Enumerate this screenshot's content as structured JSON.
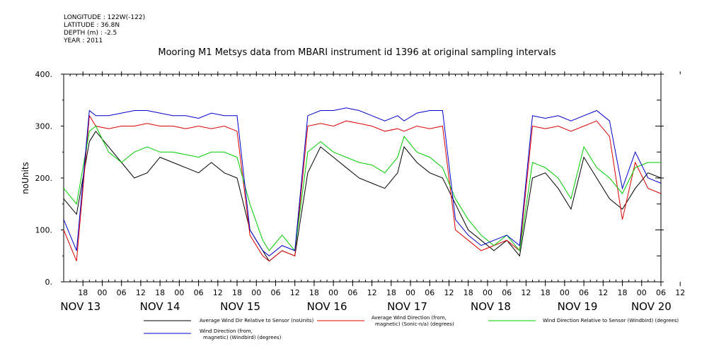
{
  "meta": {
    "longitude": "LONGITUDE : 122W(-122)",
    "latitude": "LATITUDE : 36.8N",
    "depth": "DEPTH (m) : -2.5",
    "year": "YEAR : 2011"
  },
  "chart_data": {
    "type": "line",
    "title": "Mooring M1 Metsys data from MBARI instrument id 1396 at original sampling intervals",
    "ylabel": "noUnits",
    "xlabel": "",
    "ylim": [
      0,
      400
    ],
    "yticks": [
      "0.",
      "100.",
      "200.",
      "300.",
      "400."
    ],
    "hour_ticks": [
      "18",
      "00",
      "06",
      "12",
      "18",
      "00",
      "06",
      "12",
      "18",
      "00",
      "06",
      "12",
      "18",
      "00",
      "06",
      "12",
      "18",
      "00",
      "06",
      "12",
      "18",
      "00",
      "06",
      "12",
      "18",
      "00",
      "06",
      "12",
      "18",
      "00",
      "06",
      "12"
    ],
    "date_labels": [
      "NOV 13",
      "NOV 14",
      "NOV 15",
      "NOV 16",
      "NOV 17",
      "NOV 18",
      "NOV 19",
      "NOV 20"
    ],
    "colors": {
      "black": "#000000",
      "red": "#dd0000",
      "green": "#00cc00",
      "blue": "#0000cc"
    },
    "series": [
      {
        "name": "Average Wind Dir Relative to Sensor (noUnits)",
        "color": "#000000",
        "x": [
          0,
          4,
          8,
          10,
          14,
          18,
          22,
          26,
          30,
          34,
          38,
          42,
          46,
          50,
          54,
          58,
          62,
          64,
          68,
          72,
          76,
          80,
          84,
          88,
          92,
          96,
          100,
          104,
          106,
          110,
          114,
          118,
          122,
          126,
          130,
          134,
          138,
          142,
          146,
          150,
          154,
          158,
          162,
          166,
          170,
          174,
          178,
          182,
          186
        ],
        "y": [
          160,
          130,
          270,
          290,
          260,
          230,
          200,
          210,
          240,
          230,
          220,
          210,
          230,
          210,
          200,
          100,
          60,
          40,
          60,
          50,
          210,
          260,
          240,
          220,
          200,
          190,
          180,
          210,
          260,
          230,
          210,
          200,
          150,
          100,
          80,
          60,
          80,
          50,
          200,
          210,
          180,
          140,
          240,
          200,
          160,
          140,
          180,
          210,
          200
        ]
      },
      {
        "name": "Average Wind Direction (from, magnetic) (Sonic-n/a) (degrees)",
        "color": "#dd0000",
        "x": [
          0,
          4,
          8,
          10,
          14,
          18,
          22,
          26,
          30,
          34,
          38,
          42,
          46,
          50,
          54,
          58,
          62,
          64,
          68,
          72,
          76,
          80,
          84,
          88,
          92,
          96,
          100,
          104,
          106,
          110,
          114,
          118,
          122,
          126,
          130,
          134,
          138,
          142,
          146,
          150,
          154,
          158,
          162,
          166,
          170,
          174,
          178,
          182,
          186
        ],
        "y": [
          100,
          40,
          320,
          300,
          295,
          300,
          300,
          305,
          300,
          300,
          295,
          300,
          295,
          300,
          290,
          90,
          50,
          40,
          60,
          50,
          300,
          305,
          300,
          310,
          305,
          300,
          290,
          295,
          290,
          300,
          295,
          300,
          100,
          80,
          60,
          70,
          80,
          60,
          300,
          295,
          300,
          290,
          300,
          310,
          280,
          120,
          230,
          180,
          170
        ]
      },
      {
        "name": "Wind Direction Relative to Sensor (Windbird) (degrees)",
        "color": "#00cc00",
        "x": [
          0,
          4,
          8,
          10,
          14,
          18,
          22,
          26,
          30,
          34,
          38,
          42,
          46,
          50,
          54,
          58,
          62,
          64,
          68,
          72,
          76,
          80,
          84,
          88,
          92,
          96,
          100,
          104,
          106,
          110,
          114,
          118,
          122,
          126,
          130,
          134,
          138,
          142,
          146,
          150,
          154,
          158,
          162,
          166,
          170,
          174,
          178,
          182,
          186
        ],
        "y": [
          180,
          150,
          290,
          300,
          250,
          230,
          250,
          260,
          250,
          250,
          245,
          240,
          250,
          250,
          240,
          150,
          80,
          60,
          90,
          60,
          250,
          270,
          250,
          240,
          230,
          225,
          210,
          240,
          280,
          250,
          240,
          220,
          160,
          120,
          90,
          70,
          90,
          60,
          230,
          220,
          200,
          160,
          260,
          220,
          200,
          170,
          220,
          230,
          230
        ]
      },
      {
        "name": "Wind Direction (from, magnetic) (Windbird) (degrees)",
        "color": "#0000cc",
        "x": [
          0,
          4,
          8,
          10,
          14,
          18,
          22,
          26,
          30,
          34,
          38,
          42,
          46,
          50,
          54,
          58,
          62,
          64,
          68,
          72,
          76,
          80,
          84,
          88,
          92,
          96,
          100,
          104,
          106,
          110,
          114,
          118,
          122,
          126,
          130,
          134,
          138,
          142,
          146,
          150,
          154,
          158,
          162,
          166,
          170,
          174,
          178,
          182,
          186
        ],
        "y": [
          120,
          60,
          330,
          320,
          320,
          325,
          330,
          330,
          325,
          320,
          320,
          315,
          325,
          320,
          320,
          100,
          60,
          50,
          70,
          60,
          320,
          330,
          330,
          335,
          330,
          320,
          310,
          320,
          310,
          325,
          330,
          330,
          120,
          90,
          70,
          80,
          90,
          70,
          320,
          315,
          320,
          310,
          320,
          330,
          310,
          180,
          250,
          200,
          190
        ]
      }
    ],
    "legend": [
      {
        "label": "Average Wind Dir Relative to Sensor (noUnits)",
        "color": "#000000"
      },
      {
        "label": "Average Wind Direction (from,",
        "label2": "magnetic) (Sonic-n/a) (degrees)",
        "color": "#dd0000"
      },
      {
        "label": "Wind Direction Relative to Sensor (Windbird) (degrees)",
        "color": "#00cc00"
      },
      {
        "label": "Wind Direction (from,",
        "label2": "magnetic) (Windbird) (degrees)",
        "color": "#0000cc"
      }
    ]
  }
}
